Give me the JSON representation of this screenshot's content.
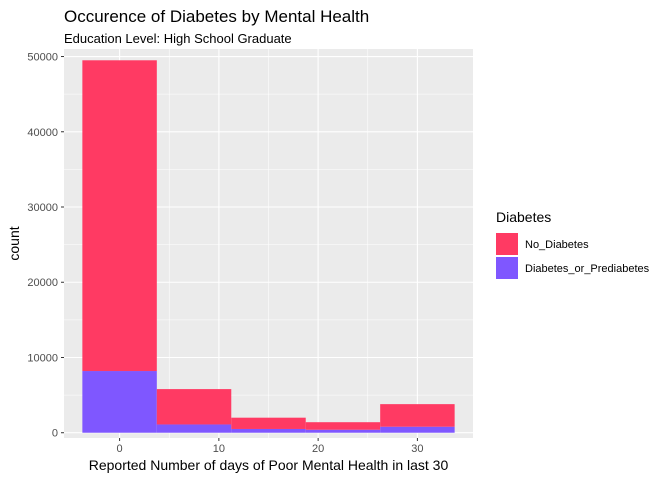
{
  "chart_data": {
    "type": "bar",
    "title": "Occurence of Diabetes by Mental Health",
    "subtitle": "Education Level: High School Graduate",
    "xlabel": "Reported Number of days of Poor Mental Health in last 30",
    "ylabel": "count",
    "xlim": [
      -5.6,
      35.6
    ],
    "ylim": [
      -700,
      51000
    ],
    "x_ticks": [
      0,
      10,
      20,
      30
    ],
    "y_ticks": [
      0,
      10000,
      20000,
      30000,
      40000,
      50000
    ],
    "x_tick_labels": [
      "0",
      "10",
      "20",
      "30"
    ],
    "y_tick_labels": [
      "0",
      "10000",
      "20000",
      "30000",
      "40000",
      "50000"
    ],
    "bins": [
      {
        "x_start": -3.75,
        "x_end": 3.75
      },
      {
        "x_start": 3.75,
        "x_end": 11.25
      },
      {
        "x_start": 11.25,
        "x_end": 18.75
      },
      {
        "x_start": 18.75,
        "x_end": 26.25
      },
      {
        "x_start": 26.25,
        "x_end": 33.75
      }
    ],
    "series": [
      {
        "name": "Diabetes_or_Prediabetes",
        "color": "#7F57FF",
        "values": [
          8200,
          1100,
          500,
          400,
          800
        ]
      },
      {
        "name": "No_Diabetes",
        "color": "#FF3A63",
        "values": [
          41300,
          4700,
          1500,
          1000,
          3000
        ]
      }
    ],
    "stacked": true,
    "legend": {
      "title": "Diabetes",
      "placement": "right",
      "entries": [
        {
          "label": "No_Diabetes",
          "color": "#FF3A63"
        },
        {
          "label": "Diabetes_or_Prediabetes",
          "color": "#7F57FF"
        }
      ]
    },
    "grid": true,
    "panel_color": "#EBEBEB",
    "grid_color": "#FFFFFF"
  }
}
